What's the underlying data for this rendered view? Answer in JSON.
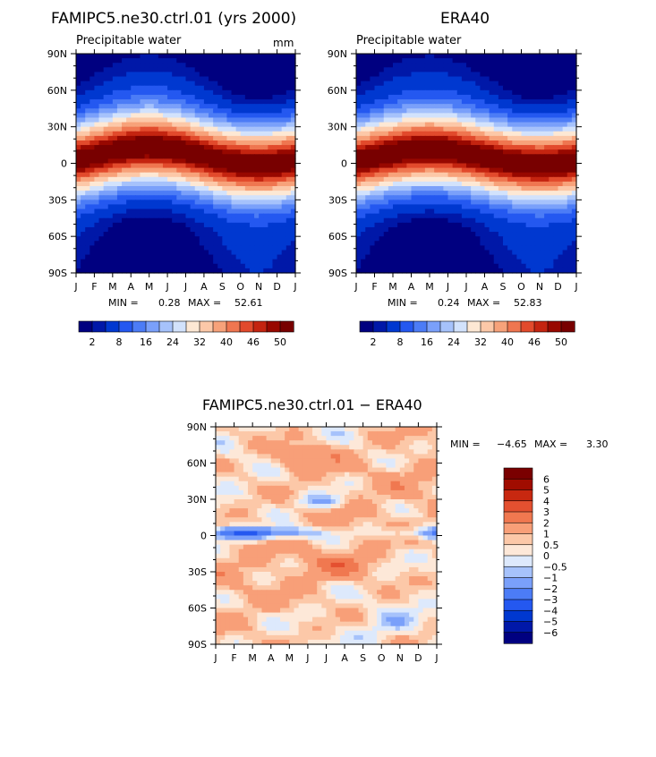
{
  "chart_data": [
    {
      "type": "heatmap",
      "title": "FAMIPC5.ne30.ctrl.01 (yrs 2000)",
      "subtitle": "Precipitable water",
      "units": "mm",
      "x_ticks": [
        "J",
        "F",
        "M",
        "A",
        "M",
        "J",
        "J",
        "A",
        "S",
        "O",
        "N",
        "D",
        "J"
      ],
      "y_ticks": [
        "90N",
        "60N",
        "30N",
        "0",
        "30S",
        "60S",
        "90S"
      ],
      "min_label": "MIN =",
      "min_value": "0.28",
      "max_label": "MAX =",
      "max_value": "52.61",
      "colorbar_labels": [
        "2",
        "8",
        "16",
        "24",
        "32",
        "40",
        "46",
        "50"
      ],
      "peak_lat": 6,
      "peak_swing": 7,
      "peak_value": 52.6
    },
    {
      "type": "heatmap",
      "title": "ERA40",
      "subtitle": "Precipitable water",
      "x_ticks": [
        "J",
        "F",
        "M",
        "A",
        "M",
        "J",
        "J",
        "A",
        "S",
        "O",
        "N",
        "D",
        "J"
      ],
      "y_ticks": [
        "90N",
        "60N",
        "30N",
        "0",
        "30S",
        "60S",
        "90S"
      ],
      "min_label": "MIN =",
      "min_value": "0.24",
      "max_label": "MAX =",
      "max_value": "52.83",
      "colorbar_labels": [
        "2",
        "8",
        "16",
        "24",
        "32",
        "40",
        "46",
        "50"
      ],
      "peak_lat": 5,
      "peak_swing": 6,
      "peak_value": 52.8
    },
    {
      "type": "heatmap",
      "title": "FAMIPC5.ne30.ctrl.01 − ERA40",
      "x_ticks": [
        "J",
        "F",
        "M",
        "A",
        "M",
        "J",
        "J",
        "A",
        "S",
        "O",
        "N",
        "D",
        "J"
      ],
      "y_ticks": [
        "90N",
        "60N",
        "30N",
        "0",
        "30S",
        "60S",
        "90S"
      ],
      "min_label": "MIN =",
      "min_value": "−4.65",
      "max_label": "MAX =",
      "max_value": "3.30",
      "colorbar_labels": [
        "6",
        "5",
        "4",
        "3",
        "2",
        "1",
        "0.5",
        "0",
        "−0.5",
        "−1",
        "−2",
        "−3",
        "−4",
        "−5",
        "−6"
      ]
    }
  ],
  "colors": {
    "abs_palette": [
      "#000080",
      "#0018a8",
      "#0038d0",
      "#2458f0",
      "#4c7cf6",
      "#7aa0fa",
      "#a6c2fb",
      "#d2e2fc",
      "#fde8d4",
      "#fcc8a8",
      "#f7a27a",
      "#ef7650",
      "#e24a2c",
      "#c42410",
      "#980800",
      "#780000"
    ],
    "diff_palette": [
      "#000080",
      "#0018a8",
      "#0038d0",
      "#2458f0",
      "#4c7cf6",
      "#7aa0fa",
      "#a6c2fb",
      "#dde9fc",
      "#fde8d8",
      "#fcc8a8",
      "#f89f78",
      "#f07850",
      "#e45030",
      "#c82810",
      "#a00c00",
      "#7a0000"
    ]
  }
}
